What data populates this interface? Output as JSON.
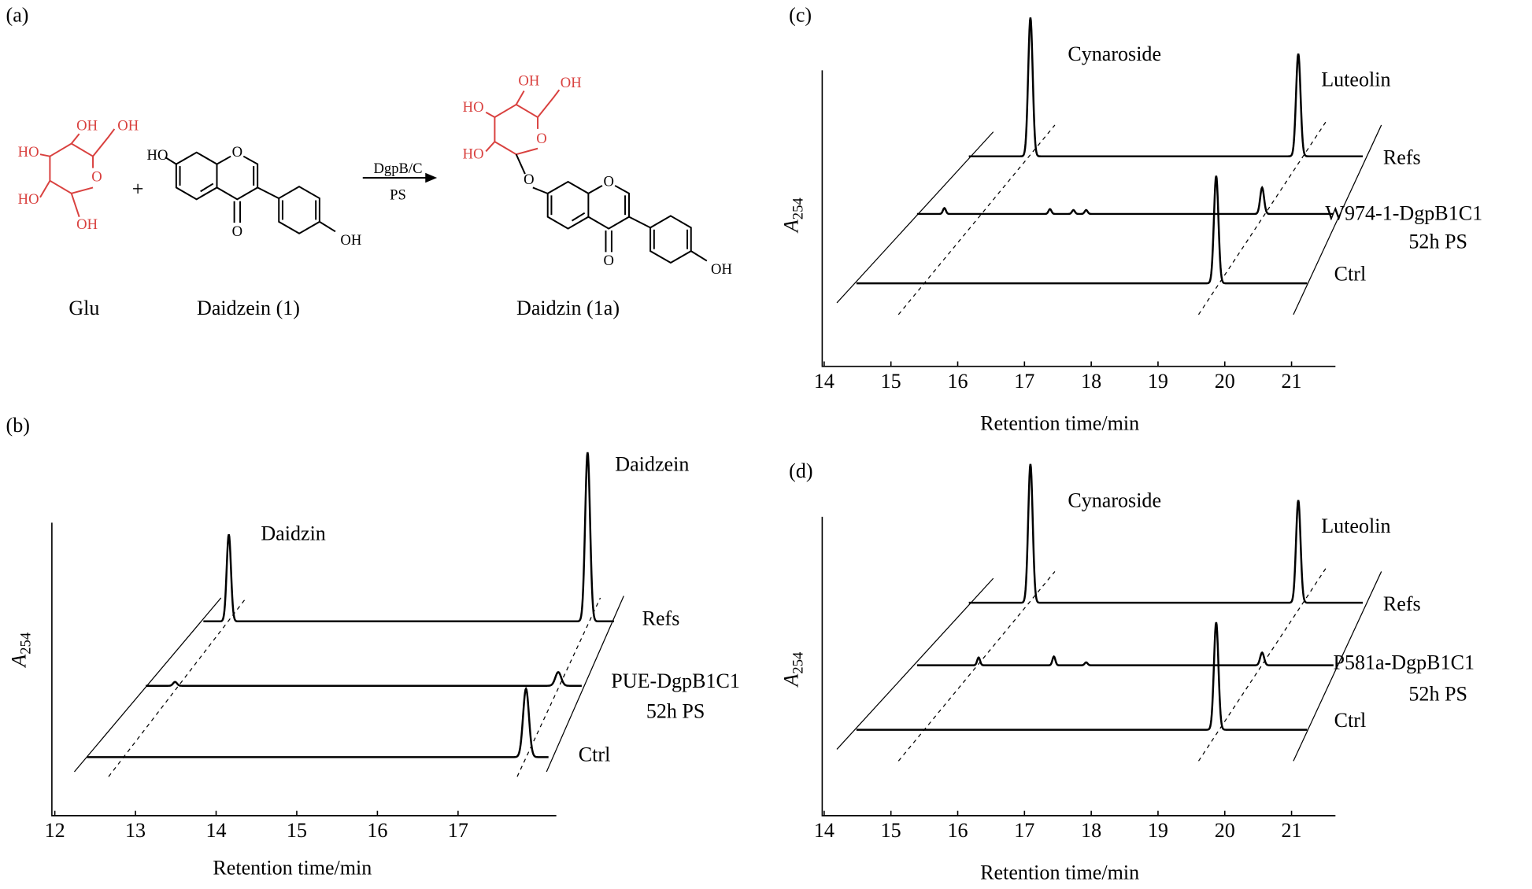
{
  "panel_a": {
    "label": "(a)",
    "glu": {
      "atoms": [
        "HO",
        "OH",
        "OH",
        "HO",
        "O",
        "OH"
      ],
      "name": "Glu"
    },
    "plus": "+",
    "daidzein": {
      "atoms": [
        "HO",
        "O",
        "O",
        "OH"
      ],
      "name": "Daidzein (1)"
    },
    "arrow": {
      "top": "DgpB/C",
      "bottom": "PS"
    },
    "daidzin": {
      "atoms": [
        "HO",
        "OH",
        "OH",
        "HO",
        "O",
        "O",
        "O",
        "O",
        "OH"
      ],
      "name": "Daidzin (1a)"
    }
  },
  "panel_b": {
    "label": "(b)",
    "x_label": "Retention time/min",
    "y_label": {
      "main": "A",
      "sub": "254"
    },
    "xticks": [
      12,
      13,
      14,
      15,
      16,
      17
    ],
    "peaks": [
      "Daidzin",
      "Daidzein"
    ],
    "traces": [
      [
        "Refs"
      ],
      [
        "PUE-DgpB1C1",
        "52h PS"
      ],
      [
        "Ctrl"
      ]
    ]
  },
  "panel_c": {
    "label": "(c)",
    "x_label": "Retention time/min",
    "y_label": {
      "main": "A",
      "sub": "254"
    },
    "xticks": [
      14,
      15,
      16,
      17,
      18,
      19,
      20,
      21
    ],
    "peaks": [
      "Cynaroside",
      "Luteolin"
    ],
    "traces": [
      [
        "Refs"
      ],
      [
        "W974-1-DgpB1C1",
        "52h PS"
      ],
      [
        "Ctrl"
      ]
    ]
  },
  "panel_d": {
    "label": "(d)",
    "x_label": "Retention time/min",
    "y_label": {
      "main": "A",
      "sub": "254"
    },
    "xticks": [
      14,
      15,
      16,
      17,
      18,
      19,
      20,
      21
    ],
    "peaks": [
      "Cynaroside",
      "Luteolin"
    ],
    "traces": [
      [
        "Refs"
      ],
      [
        "P581a-DgpB1C1",
        "52h PS"
      ],
      [
        "Ctrl"
      ]
    ]
  }
}
